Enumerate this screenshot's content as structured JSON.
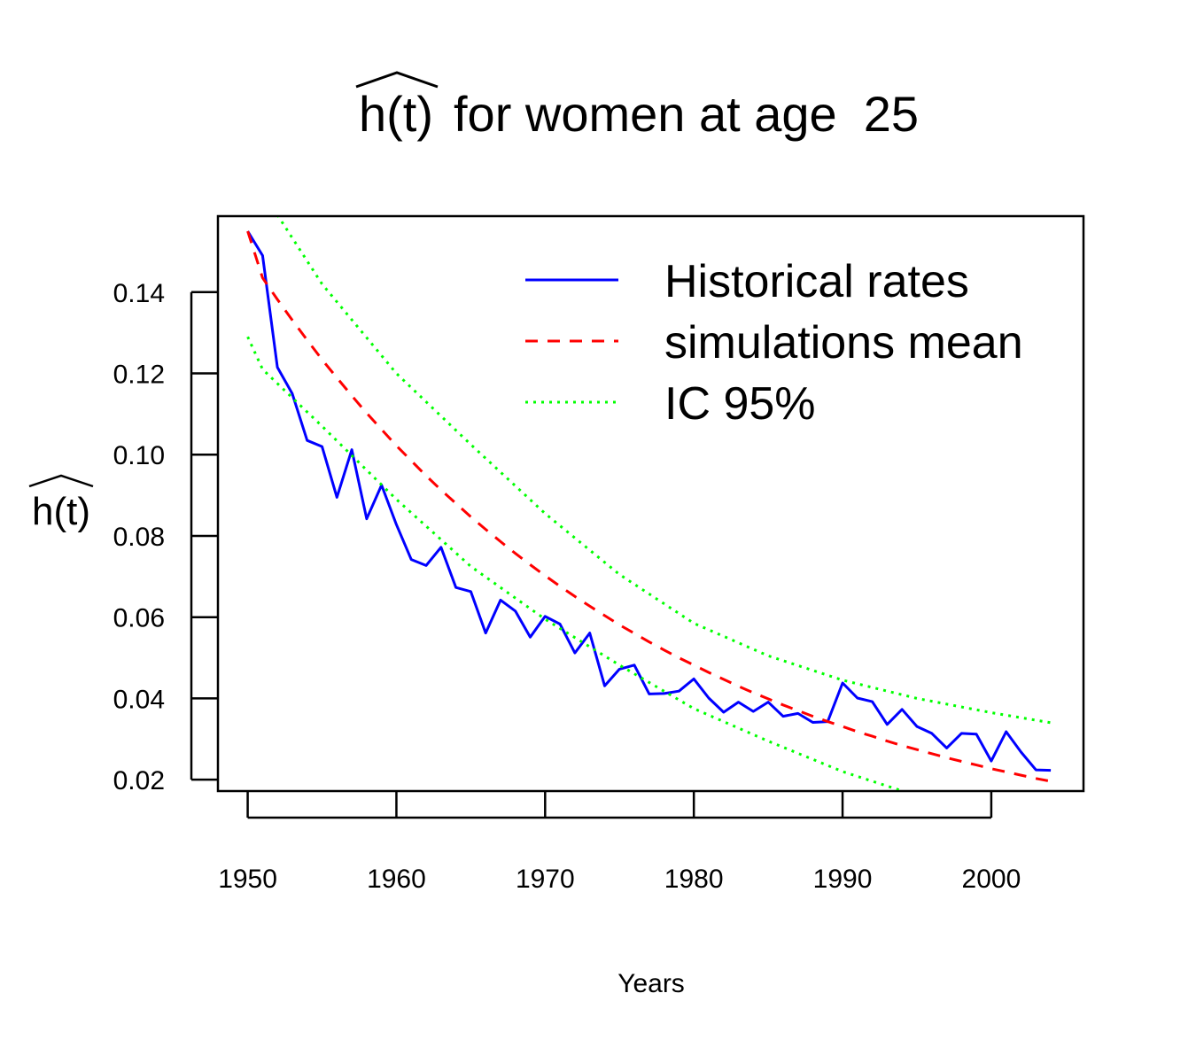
{
  "chart_data": {
    "type": "line",
    "title": {
      "expr": "h(t)",
      "text": "for women at age",
      "age": "25"
    },
    "xlabel": "Years",
    "ylabel": "h(t)",
    "xlim": [
      1948,
      2006.2
    ],
    "ylim": [
      0.0172,
      0.1587
    ],
    "x_ticks": [
      1950,
      1960,
      1970,
      1980,
      1990,
      2000
    ],
    "y_ticks": [
      0.02,
      0.04,
      0.06,
      0.08,
      0.1,
      0.12,
      0.14
    ],
    "y_tick_labels": [
      "0.02",
      "0.04",
      "0.06",
      "0.08",
      "0.10",
      "0.12",
      "0.14"
    ],
    "legend": {
      "position": "top-right",
      "entries": [
        {
          "label": "Historical rates",
          "color": "#0000ff",
          "dash": "solid"
        },
        {
          "label": "simulations mean",
          "color": "#ff0000",
          "dash": "dashed"
        },
        {
          "label": "IC  95%",
          "color": "#00ff00",
          "dash": "dotted"
        }
      ]
    },
    "series": [
      {
        "name": "Historical rates",
        "color": "#0000ff",
        "style": "solid",
        "x": [
          1950,
          1951,
          1952,
          1953,
          1954,
          1955,
          1956,
          1957,
          1958,
          1959,
          1960,
          1961,
          1962,
          1963,
          1964,
          1965,
          1966,
          1967,
          1968,
          1969,
          1970,
          1971,
          1972,
          1973,
          1974,
          1975,
          1976,
          1977,
          1978,
          1979,
          1980,
          1981,
          1982,
          1983,
          1984,
          1985,
          1986,
          1987,
          1988,
          1989,
          1990,
          1991,
          1992,
          1993,
          1994,
          1995,
          1996,
          1997,
          1998,
          1999,
          2000,
          2001,
          2002,
          2003,
          2004
        ],
        "values": [
          0.155,
          0.149,
          0.1215,
          0.115,
          0.1035,
          0.102,
          0.0895,
          0.1012,
          0.0842,
          0.0925,
          0.0828,
          0.0742,
          0.0727,
          0.0772,
          0.0673,
          0.0663,
          0.0561,
          0.0642,
          0.0615,
          0.0551,
          0.0602,
          0.0583,
          0.0512,
          0.0561,
          0.0431,
          0.0472,
          0.0482,
          0.0411,
          0.0412,
          0.0418,
          0.0448,
          0.0401,
          0.0366,
          0.0391,
          0.0368,
          0.0391,
          0.0356,
          0.0363,
          0.0341,
          0.0343,
          0.0438,
          0.0401,
          0.0392,
          0.0336,
          0.0373,
          0.0331,
          0.0314,
          0.0278,
          0.0314,
          0.0312,
          0.0246,
          0.0318,
          0.0268,
          0.0224,
          0.0223
        ]
      },
      {
        "name": "simulations mean",
        "color": "#ff0000",
        "style": "dashed",
        "x": [
          1950,
          1951,
          1952,
          1953,
          1954,
          1955,
          1956,
          1957,
          1958,
          1959,
          1960,
          1961,
          1962,
          1963,
          1964,
          1965,
          1966,
          1967,
          1968,
          1969,
          1970,
          1971,
          1972,
          1973,
          1974,
          1975,
          1976,
          1977,
          1978,
          1979,
          1980,
          1981,
          1982,
          1983,
          1984,
          1985,
          1986,
          1987,
          1988,
          1989,
          1990,
          1991,
          1992,
          1993,
          1994,
          1995,
          1996,
          1997,
          1998,
          1999,
          2000,
          2001,
          2002,
          2003,
          2004
        ],
        "values": [
          0.155,
          0.1435,
          0.1382,
          0.1331,
          0.1282,
          0.1234,
          0.1189,
          0.1145,
          0.1102,
          0.1062,
          0.1022,
          0.0985,
          0.0948,
          0.0913,
          0.088,
          0.0847,
          0.0816,
          0.0786,
          0.0757,
          0.0729,
          0.0702,
          0.0676,
          0.0651,
          0.0627,
          0.0604,
          0.0581,
          0.056,
          0.0539,
          0.0519,
          0.05,
          0.0482,
          0.0464,
          0.0447,
          0.043,
          0.0414,
          0.0399,
          0.0384,
          0.037,
          0.0356,
          0.0343,
          0.0331,
          0.0318,
          0.0307,
          0.0295,
          0.0284,
          0.0274,
          0.0264,
          0.0254,
          0.0245,
          0.0236,
          0.0227,
          0.0219,
          0.0211,
          0.0203,
          0.0196
        ]
      },
      {
        "name": "IC 95% upper",
        "color": "#00ff00",
        "style": "dotted",
        "x": [
          1952,
          1955,
          1960,
          1965,
          1970,
          1975,
          1980,
          1985,
          1990,
          1995,
          2000,
          2004
        ],
        "values": [
          0.159,
          0.142,
          0.12,
          0.1025,
          0.0855,
          0.0705,
          0.0585,
          0.0505,
          0.0445,
          0.04,
          0.0365,
          0.034
        ]
      },
      {
        "name": "IC 95% lower",
        "color": "#00ff00",
        "style": "dotted",
        "x": [
          1950,
          1951,
          1953,
          1955,
          1960,
          1965,
          1970,
          1975,
          1980,
          1985,
          1990,
          1994.2
        ],
        "values": [
          0.129,
          0.121,
          0.114,
          0.107,
          0.089,
          0.0725,
          0.0595,
          0.0482,
          0.0375,
          0.0295,
          0.022,
          0.017
        ]
      }
    ]
  }
}
